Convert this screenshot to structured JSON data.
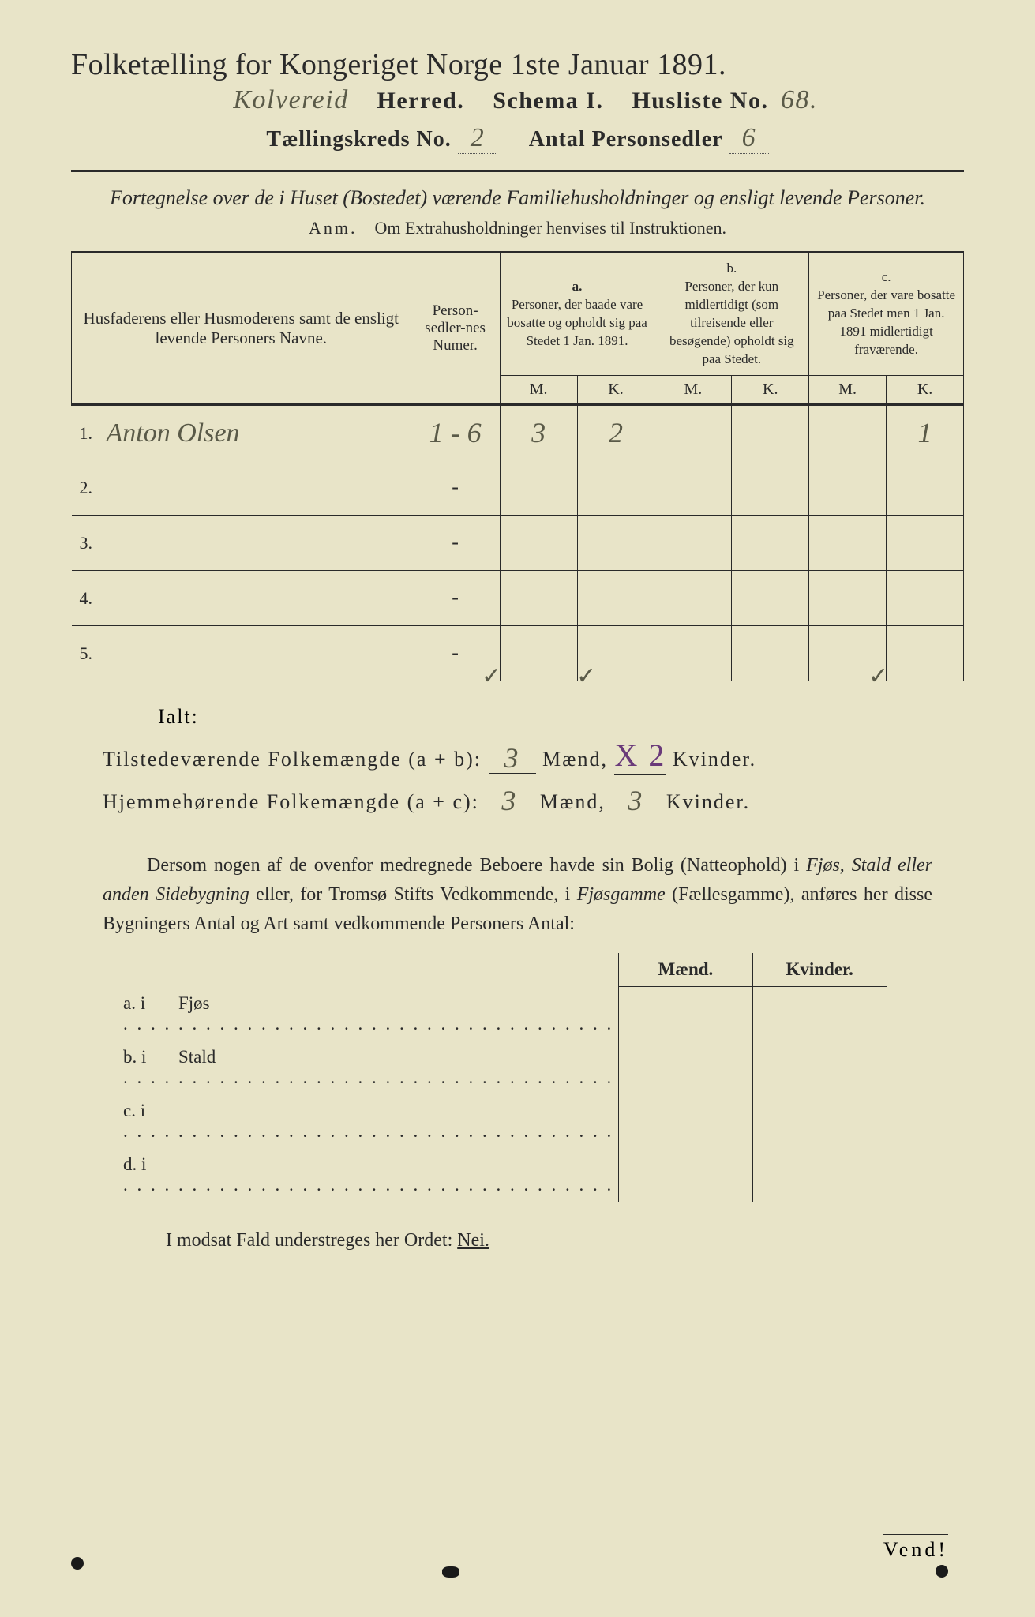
{
  "colors": {
    "paper": "#e8e4c8",
    "ink": "#2a2a2a",
    "handwriting": "#5a5a48",
    "purple": "#6a3a7a",
    "frame": "#1a1a1a"
  },
  "header": {
    "title": "Folketælling for Kongeriget Norge 1ste Januar 1891.",
    "herred_name_hw": "Kolvereid",
    "herred_label": "Herred.",
    "schema_label": "Schema I.",
    "husliste_label": "Husliste No.",
    "husliste_no_hw": "68.",
    "kreds_label": "Tællingskreds No.",
    "kreds_no_hw": "2",
    "antal_label": "Antal Personsedler",
    "antal_hw": "6"
  },
  "fortegnelse": {
    "line": "Fortegnelse over de i Huset (Bostedet) værende Familiehusholdninger og ensligt levende Personer.",
    "anm_label": "Anm.",
    "anm_text": "Om Extrahusholdninger henvises til Instruktionen."
  },
  "table": {
    "col_name": "Husfaderens eller Husmoderens samt de ensligt levende Personers Navne.",
    "col_num": "Person-sedler-nes Numer.",
    "group_a_label": "a.",
    "group_a_text": "Personer, der baade vare bosatte og opholdt sig paa Stedet 1 Jan. 1891.",
    "group_b_label": "b.",
    "group_b_text": "Personer, der kun midlertidigt (som tilreisende eller besøgende) opholdt sig paa Stedet.",
    "group_c_label": "c.",
    "group_c_text": "Personer, der vare bosatte paa Stedet men 1 Jan. 1891 midlertidigt fraværende.",
    "m_label": "M.",
    "k_label": "K.",
    "rows": [
      {
        "n": "1.",
        "name_hw": "Anton Olsen",
        "num_hw": "1 - 6",
        "a_m": "3",
        "a_k": "2",
        "b_m": "",
        "b_k": "",
        "c_m": "",
        "c_k": "1"
      },
      {
        "n": "2.",
        "name_hw": "",
        "num_hw": "-",
        "a_m": "",
        "a_k": "",
        "b_m": "",
        "b_k": "",
        "c_m": "",
        "c_k": ""
      },
      {
        "n": "3.",
        "name_hw": "",
        "num_hw": "-",
        "a_m": "",
        "a_k": "",
        "b_m": "",
        "b_k": "",
        "c_m": "",
        "c_k": ""
      },
      {
        "n": "4.",
        "name_hw": "",
        "num_hw": "-",
        "a_m": "",
        "a_k": "",
        "b_m": "",
        "b_k": "",
        "c_m": "",
        "c_k": ""
      },
      {
        "n": "5.",
        "name_hw": "",
        "num_hw": "-",
        "a_m": "",
        "a_k": "",
        "b_m": "",
        "b_k": "",
        "c_m": "",
        "c_k": ""
      }
    ]
  },
  "totals": {
    "ialt_label": "Ialt:",
    "ticks": [
      "✓",
      "✓",
      "✓"
    ],
    "line1_label": "Tilstedeværende Folkemængde (a + b):",
    "line1_m": "3",
    "line1_k_strike": "X 2",
    "maend": "Mænd,",
    "kvinder": "Kvinder.",
    "line2_label": "Hjemmehørende Folkemængde (a + c):",
    "line2_m": "3",
    "line2_k": "3"
  },
  "para": {
    "text1": "Dersom nogen af de ovenfor medregnede Beboere havde sin Bolig (Natteophold) i ",
    "em1": "Fjøs, Stald eller anden Sidebygning",
    "text2": " eller, for Tromsø Stifts Vedkommende, i ",
    "em2": "Fjøsgamme",
    "text3": " (Fællesgamme), anføres her disse Bygningers Antal og Art samt vedkommende Personers Antal:"
  },
  "side_table": {
    "maend": "Mænd.",
    "kvinder": "Kvinder.",
    "rows": [
      {
        "label": "a.  i",
        "name": "Fjøs"
      },
      {
        "label": "b.  i",
        "name": "Stald"
      },
      {
        "label": "c.  i",
        "name": ""
      },
      {
        "label": "d.  i",
        "name": ""
      }
    ]
  },
  "footer": {
    "modsat": "I modsat Fald understreges her Ordet: ",
    "nei": "Nei.",
    "vend": "Vend!"
  }
}
